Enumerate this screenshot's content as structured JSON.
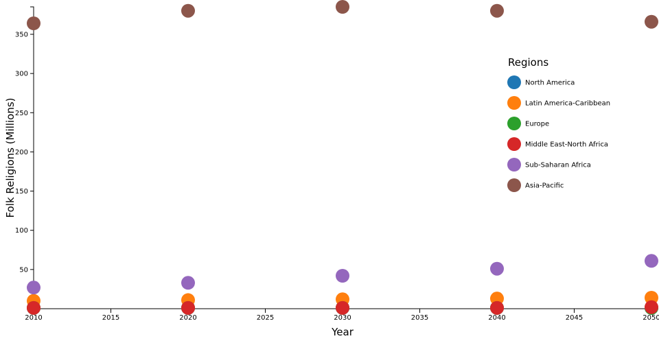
{
  "chart_data": {
    "type": "scatter",
    "title": "",
    "xlabel": "Year",
    "ylabel": "Folk Religions (Millions)",
    "xlim": [
      2010,
      2050
    ],
    "ylim": [
      0,
      385
    ],
    "x_ticks": [
      2010,
      2015,
      2020,
      2025,
      2030,
      2035,
      2040,
      2045,
      2050
    ],
    "y_ticks": [
      50,
      100,
      150,
      200,
      250,
      300,
      350
    ],
    "grid": false,
    "legend": {
      "title": "Regions",
      "placement": "right"
    },
    "x": [
      2010,
      2020,
      2030,
      2040,
      2050
    ],
    "series": [
      {
        "name": "North America",
        "color": "#1f77b4",
        "values": [
          1,
          1,
          1,
          1,
          1
        ]
      },
      {
        "name": "Latin America-Caribbean",
        "color": "#ff7f0e",
        "values": [
          10,
          11,
          12,
          13,
          14
        ]
      },
      {
        "name": "Europe",
        "color": "#2ca02c",
        "values": [
          1,
          1,
          1,
          1,
          1
        ]
      },
      {
        "name": "Middle East-North Africa",
        "color": "#d62728",
        "values": [
          1,
          1,
          1,
          1,
          2
        ]
      },
      {
        "name": "Sub-Saharan Africa",
        "color": "#9467bd",
        "values": [
          27,
          33,
          42,
          51,
          61
        ]
      },
      {
        "name": "Asia-Pacific",
        "color": "#8c564b",
        "values": [
          364,
          380,
          385,
          380,
          366
        ]
      }
    ]
  }
}
